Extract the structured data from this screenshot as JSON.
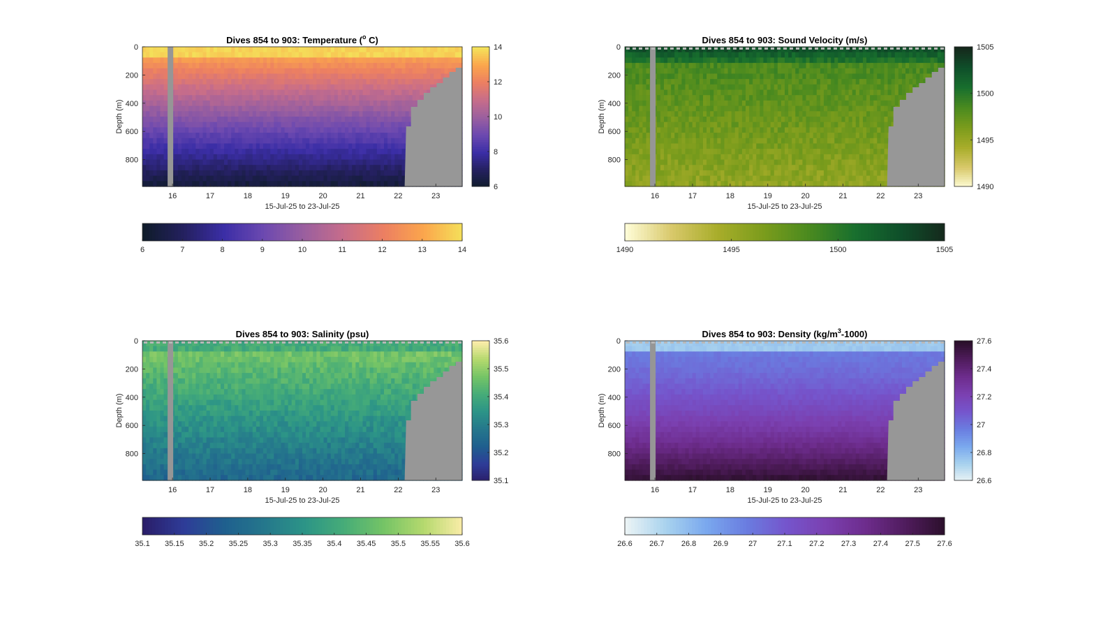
{
  "chart_data": [
    {
      "type": "heatmap",
      "title_main": "Dives 854 to 903: Temperature (",
      "title_sup": "o",
      "title_tail": " C)",
      "xlabel": "15-Jul-25 to 23-Jul-25",
      "ylabel": "Depth (m)",
      "xticks": [
        "16",
        "17",
        "18",
        "19",
        "20",
        "21",
        "22",
        "23"
      ],
      "yticks": [
        "0",
        "200",
        "400",
        "600",
        "800"
      ],
      "xlim": [
        15.2,
        23.7
      ],
      "ylim": [
        0,
        990
      ],
      "vrange": [
        6,
        14
      ],
      "cb_right_ticks": [
        "14",
        "12",
        "10",
        "8",
        "6"
      ],
      "cb_bottom_ticks": [
        "6",
        "7",
        "8",
        "9",
        "10",
        "11",
        "12",
        "13",
        "14"
      ],
      "colormap": [
        "#0f1c2b",
        "#24205f",
        "#3b2ea6",
        "#6c49b0",
        "#9a5f9f",
        "#c76d8a",
        "#ec7f62",
        "#fba64c",
        "#f4e25a"
      ],
      "surface_dashes": false
    },
    {
      "type": "heatmap",
      "title_main": "Dives 854 to 903: Sound Velocity (m/s)",
      "title_sup": "",
      "title_tail": "",
      "xlabel": "15-Jul-25 to 23-Jul-25",
      "ylabel": "Depth (m)",
      "xticks": [
        "16",
        "17",
        "18",
        "19",
        "20",
        "21",
        "22",
        "23"
      ],
      "yticks": [
        "0",
        "200",
        "400",
        "600",
        "800"
      ],
      "xlim": [
        15.2,
        23.7
      ],
      "ylim": [
        0,
        990
      ],
      "vrange": [
        1490,
        1505
      ],
      "cb_right_ticks": [
        "1505",
        "1500",
        "1495",
        "1490"
      ],
      "cb_bottom_ticks": [
        "1490",
        "1495",
        "1500",
        "1505"
      ],
      "colormap": [
        "#fefcd6",
        "#d8c86a",
        "#a8ad2a",
        "#7b9c1c",
        "#4a8a1f",
        "#186f2e",
        "#0f4f2a",
        "#15281c"
      ],
      "surface_dashes": true
    },
    {
      "type": "heatmap",
      "title_main": "Dives 854 to 903: Salinity (psu)",
      "title_sup": "",
      "title_tail": "",
      "xlabel": "15-Jul-25 to 23-Jul-25",
      "ylabel": "Depth (m)",
      "xticks": [
        "16",
        "17",
        "18",
        "19",
        "20",
        "21",
        "22",
        "23"
      ],
      "yticks": [
        "0",
        "200",
        "400",
        "600",
        "800"
      ],
      "xlim": [
        15.2,
        23.7
      ],
      "ylim": [
        0,
        990
      ],
      "vrange": [
        35.1,
        35.6
      ],
      "cb_right_ticks": [
        "35.6",
        "35.5",
        "35.4",
        "35.3",
        "35.2",
        "35.1"
      ],
      "cb_bottom_ticks": [
        "35.1",
        "35.15",
        "35.2",
        "35.25",
        "35.3",
        "35.35",
        "35.4",
        "35.45",
        "35.5",
        "35.55",
        "35.6"
      ],
      "colormap": [
        "#2a1e6a",
        "#2e3c98",
        "#1f5f8e",
        "#25778c",
        "#2c9487",
        "#46ac78",
        "#75c466",
        "#b5d96e",
        "#fdedaa"
      ],
      "surface_dashes": true
    },
    {
      "type": "heatmap",
      "title_main": "Dives 854 to 903: Density (kg/m",
      "title_sup": "3",
      "title_tail": "-1000)",
      "xlabel": "15-Jul-25 to 23-Jul-25",
      "ylabel": "Depth (m)",
      "xticks": [
        "16",
        "17",
        "18",
        "19",
        "20",
        "21",
        "22",
        "23"
      ],
      "yticks": [
        "0",
        "200",
        "400",
        "600",
        "800"
      ],
      "xlim": [
        15.2,
        23.7
      ],
      "ylim": [
        0,
        990
      ],
      "vrange": [
        26.6,
        27.6
      ],
      "cb_right_ticks": [
        "27.6",
        "27.4",
        "27.2",
        "27",
        "26.8",
        "26.6"
      ],
      "cb_bottom_ticks": [
        "26.6",
        "26.7",
        "26.8",
        "26.9",
        "27",
        "27.1",
        "27.2",
        "27.3",
        "27.4",
        "27.5",
        "27.6"
      ],
      "colormap": [
        "#eaf3f5",
        "#a8d2ee",
        "#7aa8ee",
        "#6a7de0",
        "#7555cc",
        "#7b40b0",
        "#6d2c8c",
        "#4f1c5c",
        "#2a0f2a"
      ],
      "surface_dashes": true
    }
  ]
}
